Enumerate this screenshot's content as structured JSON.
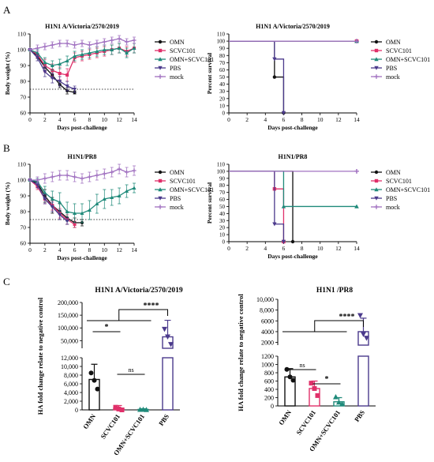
{
  "panels": {
    "A": "A",
    "B": "B",
    "C": "C"
  },
  "colors": {
    "OMN": "#111111",
    "SCVC101": "#e0306a",
    "OMN+SCVC101": "#1f8a7a",
    "PBS": "#4b3a8c",
    "mock": "#a070c0"
  },
  "chart_data": [
    {
      "id": "A-weight",
      "type": "line",
      "title": "H1N1 A/Victoria/2570/2019",
      "xlabel": "Days post-challenge",
      "ylabel": "Body weight (%)",
      "xlim": [
        0,
        14
      ],
      "ylim": [
        60,
        110
      ],
      "xticks": [
        0,
        2,
        4,
        6,
        8,
        10,
        12,
        14
      ],
      "yticks": [
        60,
        70,
        80,
        90,
        100,
        110
      ],
      "threshold": 75,
      "legend": "right",
      "series": [
        {
          "name": "OMN",
          "marker": "circle",
          "x": [
            0,
            1,
            2,
            3,
            4,
            5,
            6
          ],
          "y": [
            100,
            96,
            89,
            84,
            78,
            74,
            73
          ],
          "err": [
            0,
            1.5,
            2,
            2,
            2,
            2,
            1
          ]
        },
        {
          "name": "SCVC101",
          "marker": "square",
          "x": [
            0,
            1,
            2,
            3,
            4,
            5,
            6,
            7,
            8,
            9,
            10,
            11,
            12,
            13,
            14
          ],
          "y": [
            100,
            97,
            90,
            87,
            85,
            84,
            95,
            96,
            97,
            98,
            99,
            100,
            101,
            99,
            101
          ],
          "err": [
            0,
            2,
            4,
            4,
            4,
            4,
            3,
            3,
            3,
            3,
            3,
            3,
            3,
            3,
            3
          ]
        },
        {
          "name": "OMN+SCVC101",
          "marker": "triangle",
          "x": [
            0,
            1,
            2,
            3,
            4,
            5,
            6,
            7,
            8,
            9,
            10,
            11,
            12,
            13,
            14
          ],
          "y": [
            100,
            98,
            92,
            90,
            91,
            93,
            96,
            97,
            98,
            99,
            100,
            100,
            101,
            98,
            101
          ],
          "err": [
            0,
            2,
            3,
            3,
            3,
            3,
            3,
            3,
            3,
            3,
            3,
            3,
            3,
            3,
            3
          ]
        },
        {
          "name": "PBS",
          "marker": "triangle-down",
          "x": [
            0,
            1,
            2,
            3,
            4,
            5,
            6
          ],
          "y": [
            100,
            95,
            86,
            82,
            80,
            77,
            75
          ],
          "err": [
            0,
            2,
            3,
            3,
            3,
            3,
            2
          ]
        },
        {
          "name": "mock",
          "marker": "diamond",
          "x": [
            0,
            1,
            2,
            3,
            4,
            5,
            6,
            7,
            8,
            9,
            10,
            11,
            12,
            13,
            14
          ],
          "y": [
            100,
            101,
            102,
            103,
            104,
            104,
            103,
            104,
            103,
            104,
            105,
            106,
            107,
            105,
            106
          ],
          "err": [
            0,
            2,
            2,
            2,
            2,
            2,
            2,
            2,
            2,
            2,
            2,
            2,
            2,
            2,
            2
          ]
        }
      ]
    },
    {
      "id": "A-survival",
      "type": "line",
      "step": true,
      "title": "H1N1 A/Victoria/2570/2019",
      "xlabel": "Days post-challenge",
      "ylabel": "Percent survival",
      "xlim": [
        0,
        14
      ],
      "ylim": [
        0,
        110
      ],
      "xticks": [
        0,
        2,
        4,
        6,
        8,
        10,
        12,
        14
      ],
      "yticks": [
        0,
        10,
        20,
        30,
        40,
        50,
        60,
        70,
        80,
        90,
        100,
        110
      ],
      "legend": "right",
      "series": [
        {
          "name": "OMN",
          "marker": "circle",
          "x": [
            0,
            5,
            6
          ],
          "y": [
            100,
            50,
            0
          ]
        },
        {
          "name": "SCVC101",
          "marker": "square",
          "x": [
            0,
            14
          ],
          "y": [
            100,
            100
          ]
        },
        {
          "name": "OMN+SCVC101",
          "marker": "triangle",
          "x": [
            0,
            14
          ],
          "y": [
            100,
            100
          ]
        },
        {
          "name": "PBS",
          "marker": "triangle-down",
          "x": [
            0,
            5,
            6
          ],
          "y": [
            100,
            75,
            0
          ]
        },
        {
          "name": "mock",
          "marker": "diamond",
          "x": [
            0,
            14
          ],
          "y": [
            100,
            100
          ]
        }
      ]
    },
    {
      "id": "B-weight",
      "type": "line",
      "title": "H1N1/PR8",
      "xlabel": "Days post-challenge",
      "ylabel": "Body weight (%)",
      "xlim": [
        0,
        14
      ],
      "ylim": [
        60,
        110
      ],
      "xticks": [
        0,
        2,
        4,
        6,
        8,
        10,
        12,
        14
      ],
      "yticks": [
        60,
        70,
        80,
        90,
        100,
        110
      ],
      "threshold": 75,
      "legend": "right",
      "series": [
        {
          "name": "OMN",
          "marker": "circle",
          "x": [
            0,
            1,
            2,
            3,
            4,
            5,
            6,
            7
          ],
          "y": [
            100,
            98,
            90,
            84,
            80,
            76,
            73,
            73
          ],
          "err": [
            0,
            2,
            4,
            5,
            5,
            4,
            3,
            2
          ]
        },
        {
          "name": "SCVC101",
          "marker": "square",
          "x": [
            0,
            1,
            2,
            3,
            4,
            5,
            6
          ],
          "y": [
            100,
            96,
            88,
            84,
            79,
            75,
            72
          ],
          "err": [
            0,
            2,
            3,
            3,
            3,
            3,
            2
          ]
        },
        {
          "name": "OMN+SCVC101",
          "marker": "triangle",
          "x": [
            0,
            1,
            2,
            3,
            4,
            5,
            6,
            7,
            8,
            9,
            10,
            11,
            12,
            13,
            14
          ],
          "y": [
            100,
            99,
            92,
            88,
            86,
            80,
            79,
            79,
            81,
            85,
            88,
            89,
            90,
            93,
            95
          ],
          "err": [
            0,
            2,
            4,
            5,
            6,
            6,
            6,
            6,
            6,
            6,
            6,
            5,
            5,
            4,
            3
          ]
        },
        {
          "name": "PBS",
          "marker": "triangle-down",
          "x": [
            0,
            1,
            2,
            3,
            4,
            5
          ],
          "y": [
            100,
            97,
            88,
            83,
            78,
            74
          ],
          "err": [
            0,
            2,
            3,
            3,
            3,
            2
          ]
        },
        {
          "name": "mock",
          "marker": "diamond",
          "x": [
            0,
            1,
            2,
            3,
            4,
            5,
            6,
            7,
            8,
            9,
            10,
            11,
            12,
            13,
            14
          ],
          "y": [
            100,
            100,
            101,
            102,
            103,
            103,
            102,
            101,
            102,
            103,
            104,
            105,
            107,
            105,
            106
          ],
          "err": [
            0,
            2,
            3,
            3,
            3,
            3,
            3,
            3,
            3,
            3,
            3,
            3,
            3,
            3,
            3
          ]
        }
      ]
    },
    {
      "id": "B-survival",
      "type": "line",
      "step": true,
      "title": "H1N1/PR8",
      "xlabel": "Days post-challenge",
      "ylabel": "Percent survival",
      "xlim": [
        0,
        14
      ],
      "ylim": [
        0,
        110
      ],
      "xticks": [
        0,
        2,
        4,
        6,
        8,
        10,
        12,
        14
      ],
      "yticks": [
        0,
        10,
        20,
        30,
        40,
        50,
        60,
        70,
        80,
        90,
        100,
        110
      ],
      "legend": "right",
      "series": [
        {
          "name": "OMN",
          "marker": "circle",
          "x": [
            0,
            7
          ],
          "y": [
            100,
            0
          ]
        },
        {
          "name": "SCVC101",
          "marker": "square",
          "x": [
            0,
            5,
            6
          ],
          "y": [
            100,
            75,
            0
          ]
        },
        {
          "name": "OMN+SCVC101",
          "marker": "triangle",
          "x": [
            0,
            6,
            14
          ],
          "y": [
            100,
            50,
            50
          ]
        },
        {
          "name": "PBS",
          "marker": "triangle-down",
          "x": [
            0,
            5,
            6
          ],
          "y": [
            100,
            25,
            0
          ]
        },
        {
          "name": "mock",
          "marker": "diamond",
          "x": [
            0,
            14
          ],
          "y": [
            100,
            100
          ]
        }
      ]
    },
    {
      "id": "C-victoria",
      "type": "bar",
      "title": "H1N1 A/Victoria/2570/2019",
      "ylabel": "HA fold change relate to negative control",
      "categories": [
        "OMN",
        "SCVC101",
        "OMN+SCVC101",
        "PBS"
      ],
      "values": [
        7000,
        400,
        100,
        65000
      ],
      "errors": [
        3500,
        600,
        150,
        65000
      ],
      "points": [
        [
          8500,
          6800,
          4800
        ],
        [
          600,
          200,
          0
        ],
        [
          100,
          120,
          50
        ],
        [
          95000,
          65000,
          35000
        ]
      ],
      "ylim_lower": [
        0,
        12000
      ],
      "yticks_lower": [
        0,
        2000,
        4000,
        6000,
        8000,
        10000,
        12000
      ],
      "yticks_lower_labels": [
        "0",
        "2,000",
        "4,000",
        "6,000",
        "8,000",
        "10,000",
        "12,000"
      ],
      "ylim_upper": [
        20000,
        200000
      ],
      "yticks_upper": [
        50000,
        100000,
        150000,
        200000
      ],
      "yticks_upper_labels": [
        "50,000",
        "100,000",
        "150,000",
        "200,000"
      ],
      "significance": [
        {
          "label": "****",
          "from": "OMN",
          "to": "PBS",
          "group": true
        },
        {
          "label": "*",
          "from": "OMN",
          "to": "SCVC101"
        },
        {
          "label": "ns",
          "from": "SCVC101",
          "to": "OMN+SCVC101"
        }
      ]
    },
    {
      "id": "C-pr8",
      "type": "bar",
      "title": "H1N1 /PR8",
      "ylabel": "HA fold change relate to negative control",
      "categories": [
        "OMN",
        "SCVC101",
        "OMN+SCVC101",
        "PBS"
      ],
      "values": [
        700,
        420,
        100,
        4000
      ],
      "errors": [
        200,
        180,
        100,
        2500
      ],
      "points": [
        [
          880,
          700,
          620
        ],
        [
          550,
          420,
          250
        ],
        [
          220,
          90,
          50
        ],
        [
          7000,
          3500,
          2800
        ]
      ],
      "ylim_lower": [
        0,
        1200
      ],
      "yticks_lower": [
        0,
        200,
        400,
        600,
        800,
        1000,
        1200
      ],
      "yticks_lower_labels": [
        "0",
        "200",
        "400",
        "600",
        "800",
        "1000",
        "1200"
      ],
      "ylim_upper": [
        1500,
        10000
      ],
      "yticks_upper": [
        2000,
        4000,
        6000,
        8000,
        10000
      ],
      "yticks_upper_labels": [
        "2000",
        "4000",
        "6000",
        "8,000",
        "10,000"
      ],
      "significance": [
        {
          "label": "****",
          "from": "OMN",
          "to": "PBS",
          "group": true
        },
        {
          "label": "ns",
          "from": "OMN",
          "to": "SCVC101"
        },
        {
          "label": "*",
          "from": "SCVC101",
          "to": "OMN+SCVC101"
        }
      ]
    }
  ]
}
